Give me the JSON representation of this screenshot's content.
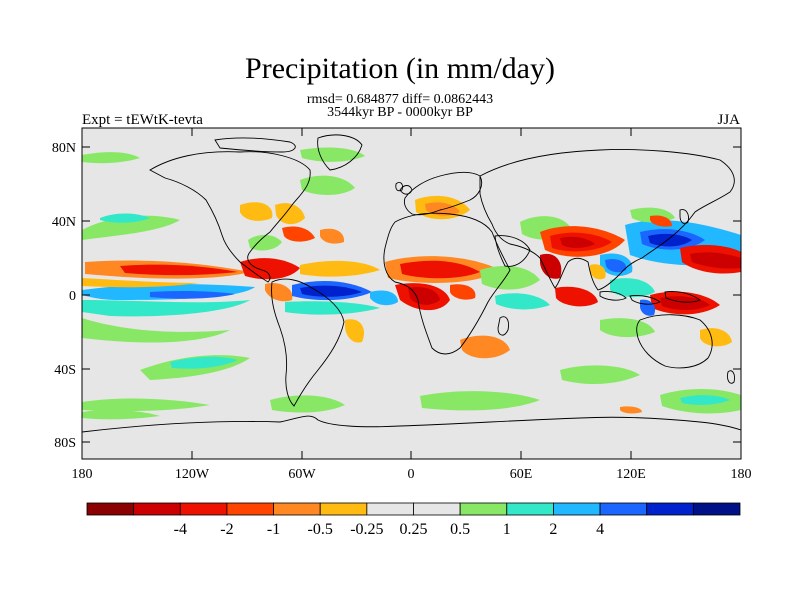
{
  "title": "Precipitation (in mm/day)",
  "subtitle_stats": "rmsd= 0.684877 diff= 0.0862443",
  "subtitle_period": "3544kyr BP - 0000kyr BP",
  "left_label": "Expt = tEWtK-tevta",
  "right_label": "JJA",
  "lat_ticks": [
    "80N",
    "40N",
    "0",
    "40S",
    "80S"
  ],
  "lon_ticks": [
    "180",
    "120W",
    "60W",
    "0",
    "60E",
    "120E",
    "180"
  ],
  "colorbar": {
    "colors": [
      "#8b0000",
      "#cc0000",
      "#ee1100",
      "#ff4400",
      "#ff8822",
      "#ffbb11",
      "#e6e6e6",
      "#e6e6e6",
      "#88e866",
      "#33e8c8",
      "#22b8ff",
      "#1a66ff",
      "#0022cc",
      "#001188"
    ],
    "labels": [
      "-4",
      "-2",
      "-1",
      "-0.5",
      "-0.25",
      "0.25",
      "0.5",
      "1",
      "2",
      "4"
    ]
  },
  "map_background": "#e6e6e6"
}
